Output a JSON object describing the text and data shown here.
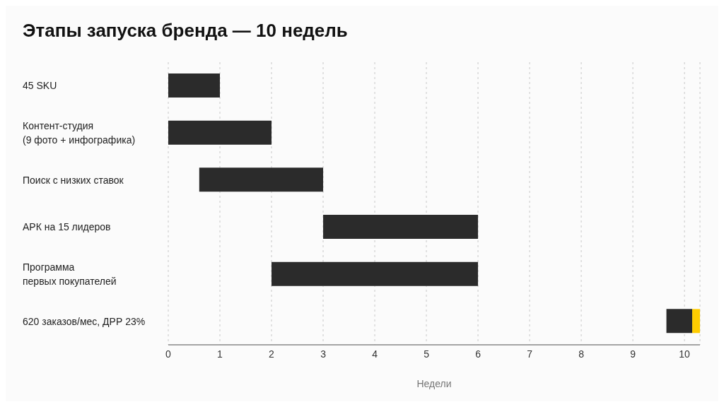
{
  "chart_data": {
    "type": "bar",
    "orientation": "horizontal",
    "title": "Этапы запуска бренда — 10 недель",
    "xlabel": "Недели",
    "categories": [
      "45 SKU",
      "Контент-студия\n(9 фото + инфографика)",
      "Поиск с низких ставок",
      "АРК на 15 лидеров",
      "Программа\nпервых покупателей",
      "620 заказов/мес, ДРР 23%"
    ],
    "series": [
      {
        "color": "#2b2b2b",
        "base": [
          0,
          0,
          0.6,
          3,
          2,
          9.65
        ],
        "values": [
          1,
          2,
          2.4,
          3,
          4,
          0.5
        ]
      },
      {
        "color": "#ffcc00",
        "base": [
          null,
          null,
          null,
          null,
          null,
          10.15
        ],
        "values": [
          null,
          null,
          null,
          null,
          null,
          0.15
        ]
      }
    ],
    "xlim": [
      0,
      10.3
    ],
    "xticks": [
      0,
      1,
      2,
      3,
      4,
      5,
      6,
      7,
      8,
      9,
      10
    ],
    "grid": "x"
  }
}
